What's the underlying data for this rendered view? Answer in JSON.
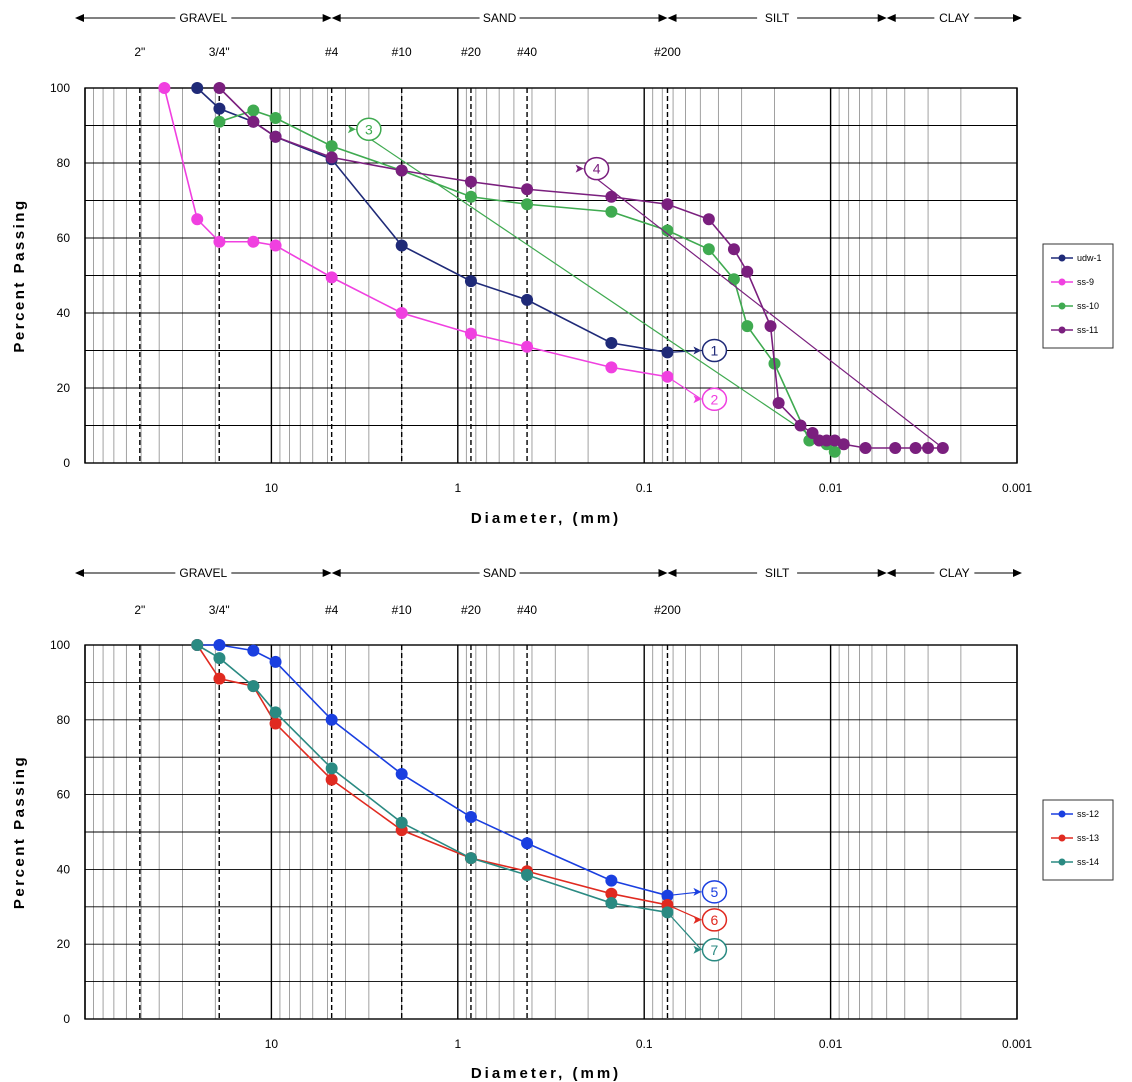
{
  "chart_data": [
    {
      "type": "line",
      "x_scale": "log",
      "x_reversed": true,
      "xlim": [
        100,
        0.001
      ],
      "ylim": [
        0,
        100
      ],
      "xlabel": "Diameter, (mm)",
      "ylabel": "Percent Passing",
      "x_ticks": [
        {
          "v": 10,
          "label": "10"
        },
        {
          "v": 1,
          "label": "1"
        },
        {
          "v": 0.1,
          "label": "0.1"
        },
        {
          "v": 0.01,
          "label": "0.01"
        },
        {
          "v": 0.001,
          "label": "0.001"
        }
      ],
      "y_ticks": [
        {
          "v": 0,
          "label": "0"
        },
        {
          "v": 20,
          "label": "20"
        },
        {
          "v": 40,
          "label": "40"
        },
        {
          "v": 60,
          "label": "60"
        },
        {
          "v": 80,
          "label": "80"
        },
        {
          "v": 100,
          "label": "100"
        }
      ],
      "grid": true,
      "soil_classes": [
        {
          "label": "GRAVEL",
          "from": 76.2,
          "to": 4.75
        },
        {
          "label": "SAND",
          "from": 4.75,
          "to": 0.075
        },
        {
          "label": "SILT",
          "from": 0.075,
          "to": 0.005
        },
        {
          "label": "CLAY",
          "from": 0.005,
          "to": 0.002
        }
      ],
      "sieves": [
        {
          "label": "2\"",
          "size": 50.8
        },
        {
          "label": "3/4\"",
          "size": 19.05
        },
        {
          "label": "#4",
          "size": 4.75
        },
        {
          "label": "#10",
          "size": 2.0
        },
        {
          "label": "#20",
          "size": 0.85
        },
        {
          "label": "#40",
          "size": 0.425
        },
        {
          "label": "#200",
          "size": 0.075
        }
      ],
      "legend_position": "right",
      "series": [
        {
          "name": "udw-1",
          "color": "#1f2a78",
          "marker": 1,
          "tag": "1",
          "x": [
            25,
            19,
            12.5,
            9.5,
            4.75,
            2.0,
            0.85,
            0.425,
            0.15,
            0.075
          ],
          "y": [
            100,
            94.5,
            91,
            87,
            81,
            58,
            48.5,
            43.5,
            32,
            29.5
          ],
          "tag_at": {
            "x": 0.042,
            "y": 30
          }
        },
        {
          "name": "ss-9",
          "color": "#f040e0",
          "marker": 1,
          "tag": "2",
          "x": [
            37.5,
            25,
            19,
            12.5,
            9.5,
            4.75,
            2.0,
            0.85,
            0.425,
            0.15,
            0.075
          ],
          "y": [
            100,
            65,
            59,
            59,
            58,
            49.5,
            40,
            34.5,
            31,
            25.5,
            23
          ],
          "tag_at": {
            "x": 0.042,
            "y": 17
          }
        },
        {
          "name": "ss-10",
          "color": "#3faa50",
          "marker": 1,
          "tag": "3",
          "x": [
            19,
            12.5,
            9.5,
            4.75,
            2.0,
            0.85,
            0.425,
            0.15,
            0.075,
            0.045,
            0.033,
            0.028,
            0.02,
            0.013,
            0.0105,
            0.0095
          ],
          "y": [
            91,
            94,
            92,
            84.5,
            78,
            71,
            69,
            67,
            62,
            57,
            49,
            36.5,
            26.5,
            6,
            5,
            3
          ],
          "tag_at": {
            "x": 3.0,
            "y": 89
          }
        },
        {
          "name": "ss-11",
          "color": "#7a1f7e",
          "marker": 1,
          "tag": "4",
          "x": [
            19,
            12.5,
            9.5,
            4.75,
            2.0,
            0.85,
            0.425,
            0.15,
            0.075,
            0.045,
            0.033,
            0.028,
            0.021,
            0.019,
            0.0145,
            0.0125,
            0.0115,
            0.0105,
            0.0095,
            0.0085,
            0.0065,
            0.0045,
            0.0035,
            0.003,
            0.0025
          ],
          "y": [
            100,
            91,
            87,
            81.5,
            78,
            75,
            73,
            71,
            69,
            65,
            57,
            51,
            36.5,
            16,
            10,
            8,
            6,
            6,
            6,
            5,
            4,
            4,
            4,
            4,
            4
          ],
          "tag_at": {
            "x": 0.18,
            "y": 78.5
          }
        }
      ]
    },
    {
      "type": "line",
      "x_scale": "log",
      "x_reversed": true,
      "xlim": [
        100,
        0.001
      ],
      "ylim": [
        0,
        100
      ],
      "xlabel": "Diameter, (mm)",
      "ylabel": "Percent Passing",
      "x_ticks": [
        {
          "v": 10,
          "label": "10"
        },
        {
          "v": 1,
          "label": "1"
        },
        {
          "v": 0.1,
          "label": "0.1"
        },
        {
          "v": 0.01,
          "label": "0.01"
        },
        {
          "v": 0.001,
          "label": "0.001"
        }
      ],
      "y_ticks": [
        {
          "v": 0,
          "label": "0"
        },
        {
          "v": 20,
          "label": "20"
        },
        {
          "v": 40,
          "label": "40"
        },
        {
          "v": 60,
          "label": "60"
        },
        {
          "v": 80,
          "label": "80"
        },
        {
          "v": 100,
          "label": "100"
        }
      ],
      "grid": true,
      "soil_classes": [
        {
          "label": "GRAVEL",
          "from": 76.2,
          "to": 4.75
        },
        {
          "label": "SAND",
          "from": 4.75,
          "to": 0.075
        },
        {
          "label": "SILT",
          "from": 0.075,
          "to": 0.005
        },
        {
          "label": "CLAY",
          "from": 0.005,
          "to": 0.002
        }
      ],
      "sieves": [
        {
          "label": "2\"",
          "size": 50.8
        },
        {
          "label": "3/4\"",
          "size": 19.05
        },
        {
          "label": "#4",
          "size": 4.75
        },
        {
          "label": "#10",
          "size": 2.0
        },
        {
          "label": "#20",
          "size": 0.85
        },
        {
          "label": "#40",
          "size": 0.425
        },
        {
          "label": "#200",
          "size": 0.075
        }
      ],
      "legend_position": "right",
      "series": [
        {
          "name": "ss-12",
          "color": "#1a3fe0",
          "marker": 1,
          "tag": "5",
          "x": [
            25,
            19,
            12.5,
            9.5,
            4.75,
            2.0,
            0.85,
            0.425,
            0.15,
            0.075
          ],
          "y": [
            100,
            100,
            98.5,
            95.5,
            80,
            65.5,
            54,
            47,
            37,
            33
          ],
          "tag_at": {
            "x": 0.042,
            "y": 34
          }
        },
        {
          "name": "ss-13",
          "color": "#e02a20",
          "marker": 1,
          "tag": "6",
          "x": [
            25,
            19,
            12.5,
            9.5,
            4.75,
            2.0,
            0.85,
            0.425,
            0.15,
            0.075
          ],
          "y": [
            100,
            91,
            89,
            79,
            64,
            50.5,
            43,
            39.5,
            33.5,
            30.5
          ],
          "tag_at": {
            "x": 0.042,
            "y": 26.5
          }
        },
        {
          "name": "ss-14",
          "color": "#2a8a82",
          "marker": 1,
          "tag": "7",
          "x": [
            25,
            19,
            12.5,
            9.5,
            4.75,
            2.0,
            0.85,
            0.425,
            0.15,
            0.075
          ],
          "y": [
            100,
            96.5,
            89,
            82,
            67,
            52.5,
            43,
            38.5,
            31,
            28.5
          ],
          "tag_at": {
            "x": 0.042,
            "y": 18.5
          }
        }
      ]
    }
  ]
}
